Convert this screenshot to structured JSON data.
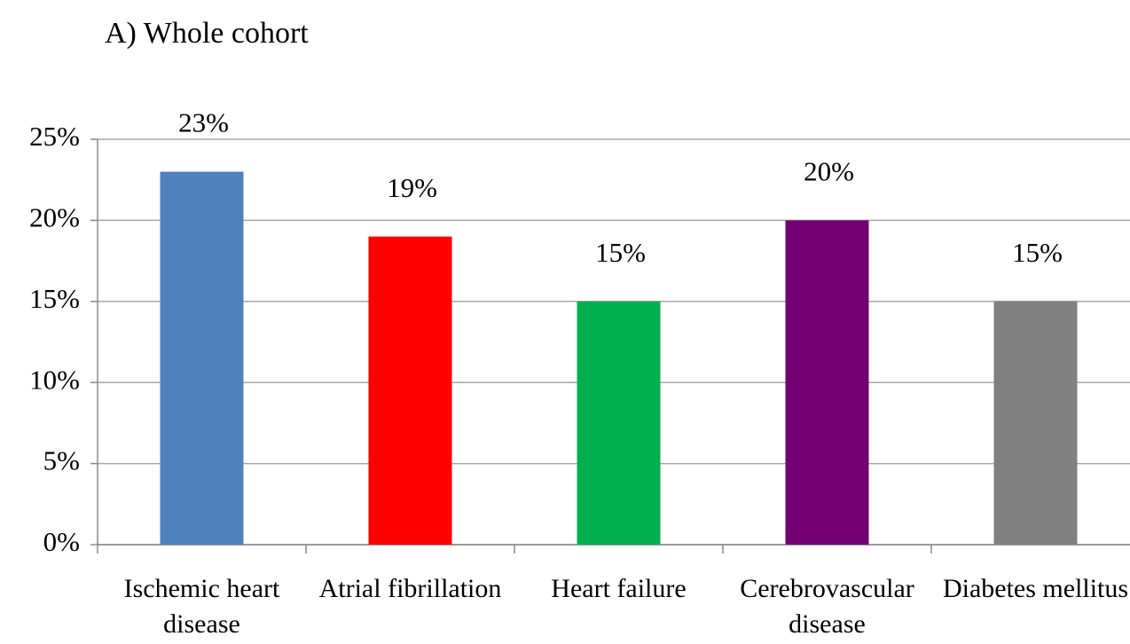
{
  "chart_data": {
    "type": "bar",
    "title": "A) Whole cohort",
    "categories": [
      "Ischemic heart disease",
      "Atrial fibrillation",
      "Heart failure",
      "Cerebrovascular disease",
      "Diabetes mellitus"
    ],
    "values": [
      23,
      19,
      15,
      20,
      15
    ],
    "value_labels": [
      "23%",
      "19%",
      "15%",
      "20%",
      "15%"
    ],
    "colors": [
      "#4f81bd",
      "#ff0000",
      "#00b050",
      "#720072",
      "#808080"
    ],
    "ylim": [
      0,
      25
    ],
    "yticks": [
      {
        "value": 0,
        "label": "0%"
      },
      {
        "value": 5,
        "label": "5%"
      },
      {
        "value": 10,
        "label": "10%"
      },
      {
        "value": 15,
        "label": "15%"
      },
      {
        "value": 20,
        "label": "20%"
      },
      {
        "value": 25,
        "label": "25%"
      }
    ],
    "grid": true
  }
}
